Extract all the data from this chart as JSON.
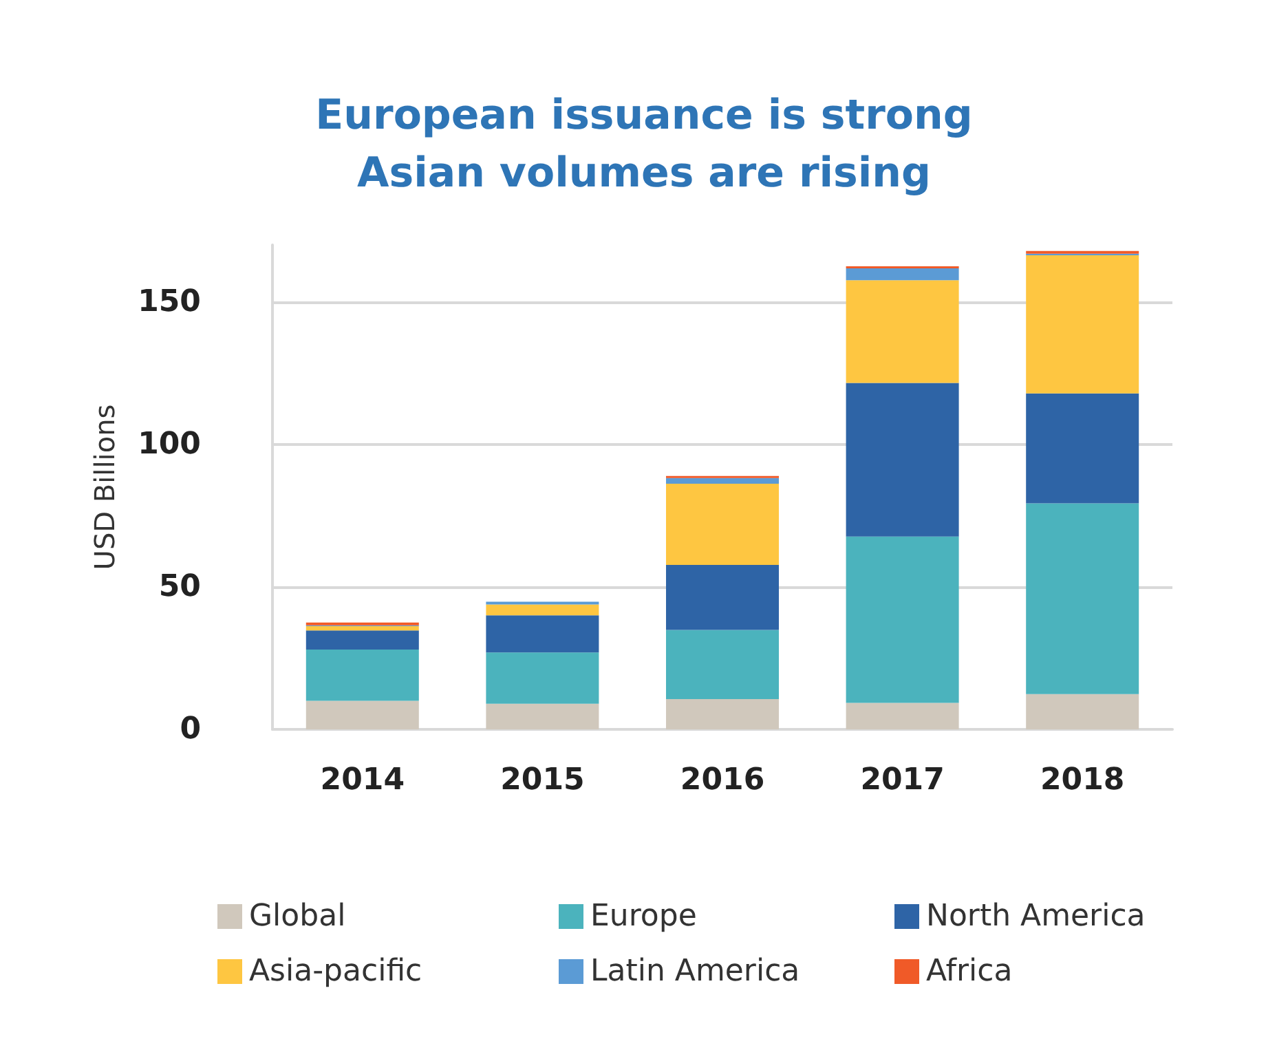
{
  "chart_data": {
    "type": "bar",
    "title": "European issuance is strong\nAsian volumes are rising",
    "ylabel": "USD Billions",
    "categories": [
      "2014",
      "2015",
      "2016",
      "2017",
      "2018"
    ],
    "stacked": true,
    "ylim": [
      0,
      170
    ],
    "yticks": [
      0,
      50,
      100,
      150
    ],
    "grid": "y",
    "legend": "bottom",
    "series": [
      {
        "name": "Global",
        "color": "#d0c8bc",
        "values": [
          10,
          9,
          10.6,
          9.3,
          12.4
        ]
      },
      {
        "name": "Europe",
        "color": "#4bb3bd",
        "values": [
          18,
          18,
          24.3,
          58.4,
          66.9
        ]
      },
      {
        "name": "North America",
        "color": "#2e64a6",
        "values": [
          6.7,
          13,
          22.8,
          53.9,
          38.6
        ]
      },
      {
        "name": "Asia-pacific",
        "color": "#fec641",
        "values": [
          1.5,
          3.8,
          28.5,
          36,
          48.5
        ]
      },
      {
        "name": "Latin America",
        "color": "#5b9bd5",
        "values": [
          0.3,
          1,
          2,
          4.2,
          0.5
        ]
      },
      {
        "name": "Africa",
        "color": "#f05a28",
        "values": [
          1,
          null,
          0.7,
          0.7,
          1
        ]
      }
    ]
  }
}
